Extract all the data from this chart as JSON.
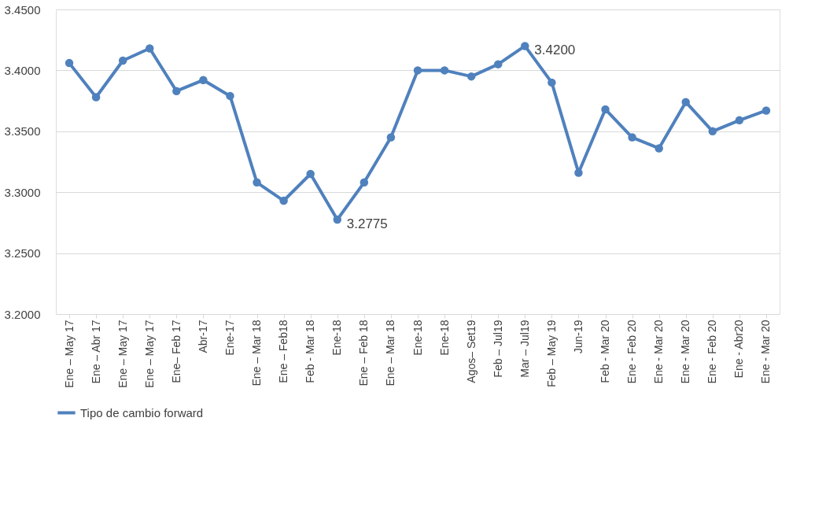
{
  "chart_data": {
    "type": "line",
    "categories": [
      "Ene – May 17",
      "Ene – Abr 17",
      "Ene – May 17",
      "Ene – May 17",
      "Ene– Feb 17",
      "Abr-17",
      "Ene-17",
      "Ene – Mar 18",
      "Ene – Feb18",
      "Feb - Mar 18",
      "Ene-18",
      "Ene – Feb 18",
      "Ene – Mar 18",
      "Ene-18",
      "Ene-18",
      "Agos– Set19",
      "Feb – Jul19",
      "Mar – Jul19",
      "Feb – May 19",
      "Jun-19",
      "Feb - Mar 20",
      "Ene - Feb 20",
      "Ene - Mar 20",
      "Ene - Mar 20",
      "Ene - Feb 20",
      "Ene - Abr20",
      "Ene - Mar 20"
    ],
    "series": [
      {
        "name": "Tipo de cambio forward",
        "color": "#4f81bd",
        "values": [
          3.406,
          3.378,
          3.408,
          3.418,
          3.383,
          3.392,
          3.379,
          3.308,
          3.293,
          3.315,
          3.2775,
          3.308,
          3.345,
          3.4,
          3.4,
          3.395,
          3.405,
          3.42,
          3.39,
          3.316,
          3.368,
          3.345,
          3.336,
          3.374,
          3.35,
          3.359,
          3.367
        ],
        "value_labels": [
          null,
          null,
          null,
          null,
          null,
          null,
          null,
          null,
          null,
          null,
          "3.2775",
          null,
          null,
          null,
          null,
          null,
          null,
          "3.4200",
          null,
          null,
          null,
          null,
          null,
          null,
          null,
          null,
          null
        ]
      }
    ],
    "ylim": [
      3.2,
      3.45
    ],
    "yticks": [
      {
        "value": 3.2,
        "label": "3.2000"
      },
      {
        "value": 3.25,
        "label": "3.2500"
      },
      {
        "value": 3.3,
        "label": "3.3000"
      },
      {
        "value": 3.35,
        "label": "3.3500"
      },
      {
        "value": 3.4,
        "label": "3.4000"
      },
      {
        "value": 3.45,
        "label": "3.4500"
      }
    ],
    "grid": "y",
    "legend": "bottom",
    "marker": "circle",
    "line_style": "solid"
  }
}
